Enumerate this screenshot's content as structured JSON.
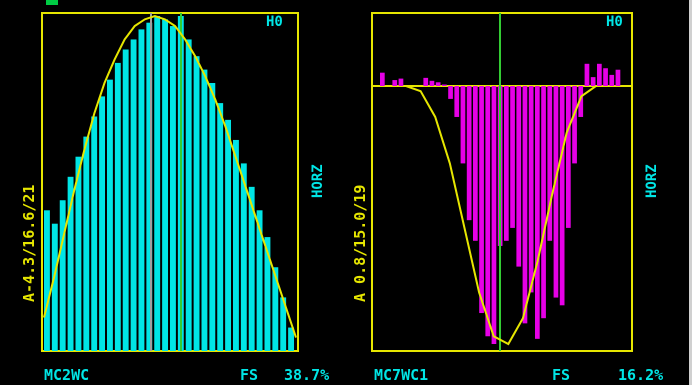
{
  "colors": {
    "background": "#000000",
    "frame": "#e6e600",
    "curve": "#e6e600",
    "left_bars": "#00e5e5",
    "right_bars": "#e600e6",
    "marker_grey": "#a0a0a0",
    "marker_green": "#33cc33",
    "side_label": "#00e5e5",
    "bottom_text": "#00e5e5",
    "left_text": "#e6e600",
    "indicator": "#00cc44"
  },
  "panels": [
    {
      "id": "left",
      "vertical_label": "A-4.3/16.6/21",
      "side_label": "HORZ",
      "corner_label": "H0",
      "channel_label": "MC2WC",
      "fs_label": "FS",
      "fs_value": "38.7%"
    },
    {
      "id": "right",
      "vertical_label": "A 0.8/15.0/19",
      "side_label": "HORZ",
      "corner_label": "H0",
      "channel_label": "MC7WC1",
      "fs_label": "FS",
      "fs_value": "16.2%"
    }
  ],
  "chart_data": [
    {
      "type": "bar",
      "series_name": "",
      "bin_count": 32,
      "values": [
        0.42,
        0.38,
        0.45,
        0.52,
        0.58,
        0.64,
        0.7,
        0.76,
        0.81,
        0.86,
        0.9,
        0.93,
        0.96,
        0.98,
        1.0,
        0.99,
        0.97,
        1.0,
        0.93,
        0.88,
        0.84,
        0.8,
        0.74,
        0.69,
        0.63,
        0.56,
        0.49,
        0.42,
        0.34,
        0.25,
        0.16,
        0.07
      ],
      "curve_values": [
        0.1,
        0.22,
        0.35,
        0.48,
        0.6,
        0.71,
        0.8,
        0.87,
        0.93,
        0.97,
        0.99,
        1.0,
        0.99,
        0.97,
        0.93,
        0.88,
        0.82,
        0.75,
        0.67,
        0.58,
        0.49,
        0.4,
        0.31,
        0.22,
        0.13,
        0.04
      ],
      "markers": [
        "grey",
        "green"
      ]
    },
    {
      "type": "bar",
      "series_name": "",
      "bin_count": 40,
      "baseline": 0,
      "values": [
        0.18,
        0.0,
        0.08,
        0.1,
        0.0,
        0.0,
        0.0,
        0.11,
        0.07,
        0.05,
        0.02,
        -0.05,
        -0.12,
        -0.3,
        -0.52,
        -0.6,
        -0.88,
        -0.97,
        -1.0,
        -0.62,
        -0.6,
        -0.55,
        -0.7,
        -0.92,
        -0.8,
        -0.98,
        -0.9,
        -0.6,
        -0.82,
        -0.85,
        -0.55,
        -0.3,
        -0.12,
        0.3,
        0.12,
        0.3,
        0.24,
        0.15,
        0.22,
        0.0
      ],
      "curve_values": [
        0.0,
        -0.02,
        -0.12,
        -0.3,
        -0.55,
        -0.8,
        -0.97,
        -1.0,
        -0.9,
        -0.68,
        -0.42,
        -0.18,
        -0.04,
        0.0
      ],
      "markers": [
        "green"
      ]
    }
  ]
}
